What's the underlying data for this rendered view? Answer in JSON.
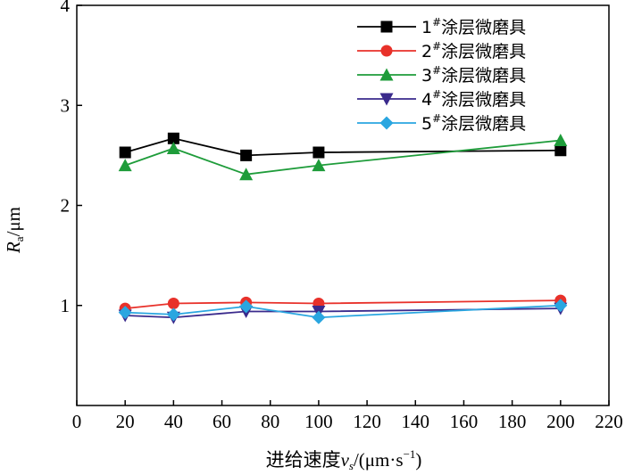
{
  "chart_data": {
    "type": "line",
    "xlim": [
      0,
      220
    ],
    "ylim": [
      0,
      4
    ],
    "xticks": [
      0,
      20,
      40,
      60,
      80,
      100,
      120,
      140,
      160,
      180,
      200,
      220
    ],
    "yticks": [
      1,
      2,
      3,
      4
    ],
    "xlabel": {
      "main": "进给速度",
      "var": "v",
      "sub": "s",
      "unit_start": "/(μm·s",
      "exp": "−1",
      "unit_end": ")"
    },
    "ylabel": {
      "var": "R",
      "sub": "a",
      "unit": "/μm"
    },
    "grid": false,
    "legend_position": "top-right",
    "series": [
      {
        "prefix": "1",
        "sup": "#",
        "suffix": "涂层微磨具",
        "color": "#000000",
        "marker": "square",
        "x": [
          20,
          40,
          70,
          100,
          200
        ],
        "y": [
          2.53,
          2.67,
          2.5,
          2.53,
          2.55
        ]
      },
      {
        "prefix": "2",
        "sup": "#",
        "suffix": "涂层微磨具",
        "color": "#e8312a",
        "marker": "circle",
        "x": [
          20,
          40,
          70,
          100,
          200
        ],
        "y": [
          0.97,
          1.02,
          1.03,
          1.02,
          1.05
        ]
      },
      {
        "prefix": "3",
        "sup": "#",
        "suffix": "涂层微磨具",
        "color": "#1e9c3a",
        "marker": "triangle-up",
        "x": [
          20,
          40,
          70,
          100,
          200
        ],
        "y": [
          2.4,
          2.57,
          2.31,
          2.4,
          2.65
        ]
      },
      {
        "prefix": "4",
        "sup": "#",
        "suffix": "涂层微磨具",
        "color": "#3a2a8c",
        "marker": "triangle-down",
        "x": [
          20,
          40,
          70,
          100,
          200
        ],
        "y": [
          0.9,
          0.88,
          0.94,
          0.94,
          0.97
        ]
      },
      {
        "prefix": "5",
        "sup": "#",
        "suffix": "涂层微磨具",
        "color": "#2aa6e0",
        "marker": "diamond",
        "x": [
          20,
          40,
          70,
          100,
          200
        ],
        "y": [
          0.93,
          0.91,
          0.99,
          0.88,
          1.0
        ]
      }
    ]
  }
}
